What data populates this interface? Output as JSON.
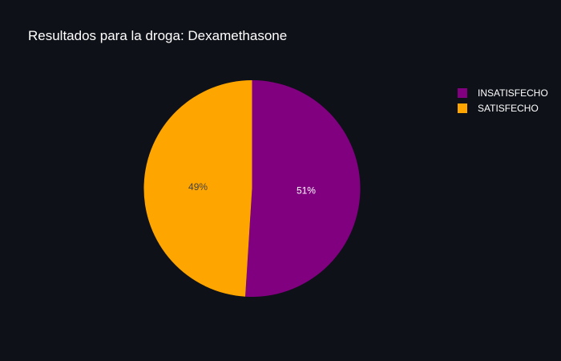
{
  "chart_data": {
    "type": "pie",
    "title": "Resultados para la droga: Dexamethasone",
    "slices": [
      {
        "label": "INSATISFECHO",
        "percent_label": "51%",
        "value": 51,
        "color": "#800080",
        "text_color": "#ffffff"
      },
      {
        "label": "SATISFECHO",
        "percent_label": "49%",
        "value": 49,
        "color": "#ffa500",
        "text_color": "#444444"
      }
    ],
    "direction": "clockwise",
    "start": "top",
    "legend_position": "top-right"
  },
  "colors": {
    "background": "#0e1117"
  }
}
